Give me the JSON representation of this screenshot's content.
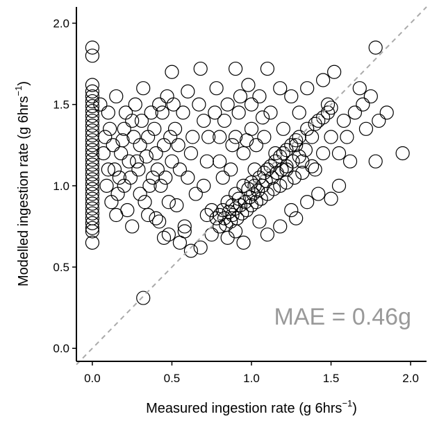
{
  "chart_data": {
    "type": "scatter",
    "title": "",
    "xlabel": {
      "main": "Measured ingestion rate (g 6hrs",
      "sup": "−1",
      "close": ")"
    },
    "ylabel": {
      "main": "Modelled ingestion rate (g 6hrs",
      "sup": "−1",
      "close": ")"
    },
    "xlim": [
      -0.1,
      2.1
    ],
    "ylim": [
      -0.08,
      2.1
    ],
    "x_ticks": [
      0.0,
      0.5,
      1.0,
      1.5,
      2.0
    ],
    "x_tick_labels": [
      "0.0",
      "0.5",
      "1.0",
      "1.5",
      "2.0"
    ],
    "y_ticks": [
      0.0,
      0.5,
      1.0,
      1.5,
      2.0
    ],
    "y_tick_labels": [
      "0.0",
      "0.5",
      "1.0",
      "1.5",
      "2.0"
    ],
    "grid": false,
    "marker": "open-circle",
    "colors": {
      "points": "#000000",
      "reference_line": "#aaaaaa",
      "annotation": "#999999"
    },
    "reference_line": {
      "style": "dashed",
      "from": [
        -0.1,
        -0.1
      ],
      "to": [
        2.1,
        2.1
      ]
    },
    "annotation": "MAE = 0.46g",
    "points": [
      [
        0,
        1.85
      ],
      [
        0,
        1.8
      ],
      [
        0,
        1.62
      ],
      [
        0,
        1.58
      ],
      [
        0,
        1.55
      ],
      [
        0,
        1.52
      ],
      [
        0,
        1.49
      ],
      [
        0,
        1.46
      ],
      [
        0,
        1.43
      ],
      [
        0,
        1.4
      ],
      [
        0,
        1.37
      ],
      [
        0,
        1.34
      ],
      [
        0,
        1.31
      ],
      [
        0,
        1.28
      ],
      [
        0,
        1.25
      ],
      [
        0,
        1.22
      ],
      [
        0,
        1.19
      ],
      [
        0,
        1.16
      ],
      [
        0,
        1.13
      ],
      [
        0,
        1.1
      ],
      [
        0,
        1.07
      ],
      [
        0,
        1.04
      ],
      [
        0,
        1.01
      ],
      [
        0,
        0.98
      ],
      [
        0,
        0.95
      ],
      [
        0,
        0.92
      ],
      [
        0,
        0.89
      ],
      [
        0,
        0.86
      ],
      [
        0,
        0.83
      ],
      [
        0,
        0.8
      ],
      [
        0,
        0.77
      ],
      [
        0,
        0.74
      ],
      [
        0,
        0.72
      ],
      [
        0,
        0.65
      ],
      [
        0.32,
        0.31
      ],
      [
        0.05,
        1.5
      ],
      [
        0.08,
        1.3
      ],
      [
        0.1,
        1.1
      ],
      [
        0.12,
        0.9
      ],
      [
        0.15,
        1.55
      ],
      [
        0.18,
        1.2
      ],
      [
        0.2,
        1.0
      ],
      [
        0.22,
        0.85
      ],
      [
        0.25,
        1.4
      ],
      [
        0.28,
        1.15
      ],
      [
        0.3,
        0.95
      ],
      [
        0.32,
        1.6
      ],
      [
        0.35,
        1.3
      ],
      [
        0.38,
        1.05
      ],
      [
        0.4,
        0.8
      ],
      [
        0.42,
        1.5
      ],
      [
        0.45,
        1.25
      ],
      [
        0.48,
        0.9
      ],
      [
        0.5,
        1.7
      ],
      [
        0.52,
        1.35
      ],
      [
        0.55,
        1.1
      ],
      [
        0.58,
        0.75
      ],
      [
        0.6,
        1.58
      ],
      [
        0.62,
        1.2
      ],
      [
        0.65,
        0.95
      ],
      [
        0.68,
        1.72
      ],
      [
        0.7,
        1.4
      ],
      [
        0.72,
        1.15
      ],
      [
        0.75,
        0.85
      ],
      [
        0.78,
        1.6
      ],
      [
        0.8,
        1.3
      ],
      [
        0.82,
        1.05
      ],
      [
        0.85,
        1.5
      ],
      [
        0.88,
        1.25
      ],
      [
        0.9,
        1.72
      ],
      [
        0.92,
        1.45
      ],
      [
        0.95,
        1.2
      ],
      [
        0.98,
        1.62
      ],
      [
        1.0,
        1.35
      ],
      [
        1.02,
        1.1
      ],
      [
        1.05,
        1.55
      ],
      [
        1.08,
        1.3
      ],
      [
        1.1,
        1.72
      ],
      [
        1.12,
        1.45
      ],
      [
        1.15,
        1.2
      ],
      [
        1.18,
        1.6
      ],
      [
        1.2,
        1.35
      ],
      [
        1.22,
        1.1
      ],
      [
        1.25,
        1.55
      ],
      [
        1.28,
        1.28
      ],
      [
        1.3,
        1.45
      ],
      [
        1.32,
        1.15
      ],
      [
        1.35,
        1.6
      ],
      [
        1.38,
        1.3
      ],
      [
        1.4,
        1.1
      ],
      [
        1.42,
        1.4
      ],
      [
        1.45,
        1.2
      ],
      [
        1.48,
        1.5
      ],
      [
        1.5,
        1.3
      ],
      [
        1.52,
        1.7
      ],
      [
        1.55,
        1.2
      ],
      [
        1.58,
        1.4
      ],
      [
        1.6,
        1.3
      ],
      [
        1.62,
        1.15
      ],
      [
        1.65,
        1.45
      ],
      [
        1.7,
        1.5
      ],
      [
        1.75,
        1.55
      ],
      [
        1.78,
        1.85
      ],
      [
        1.8,
        1.4
      ],
      [
        1.85,
        1.45
      ],
      [
        1.78,
        1.15
      ],
      [
        1.95,
        1.2
      ],
      [
        1.72,
        1.35
      ],
      [
        1.68,
        1.6
      ],
      [
        1.45,
        1.65
      ],
      [
        1.55,
        1.0
      ],
      [
        1.5,
        0.92
      ],
      [
        1.42,
        0.95
      ],
      [
        1.35,
        0.9
      ],
      [
        1.28,
        0.8
      ],
      [
        0.62,
        0.6
      ],
      [
        0.68,
        0.62
      ],
      [
        0.55,
        0.65
      ],
      [
        0.48,
        0.7
      ],
      [
        0.42,
        0.78
      ],
      [
        0.35,
        0.82
      ],
      [
        0.25,
        0.75
      ],
      [
        0.15,
        0.82
      ],
      [
        0.45,
        0.68
      ],
      [
        0.58,
        0.72
      ],
      [
        0.75,
        0.7
      ],
      [
        0.85,
        0.68
      ],
      [
        0.9,
        0.72
      ],
      [
        0.95,
        0.65
      ],
      [
        1.1,
        0.7
      ],
      [
        1.18,
        0.75
      ],
      [
        1.25,
        0.85
      ],
      [
        1.05,
        0.78
      ],
      [
        0.8,
        0.75
      ],
      [
        0.72,
        0.82
      ],
      [
        0.78,
        0.8
      ],
      [
        0.82,
        0.85
      ],
      [
        0.85,
        0.9
      ],
      [
        0.88,
        0.88
      ],
      [
        0.9,
        0.95
      ],
      [
        0.92,
        0.92
      ],
      [
        0.95,
        1.0
      ],
      [
        0.98,
        0.98
      ],
      [
        1.0,
        1.02
      ],
      [
        1.02,
        1.0
      ],
      [
        1.05,
        1.05
      ],
      [
        1.08,
        1.08
      ],
      [
        1.1,
        1.1
      ],
      [
        1.12,
        1.12
      ],
      [
        1.15,
        1.15
      ],
      [
        1.18,
        1.18
      ],
      [
        1.2,
        1.2
      ],
      [
        1.22,
        1.22
      ],
      [
        1.25,
        1.25
      ],
      [
        1.28,
        1.25
      ],
      [
        1.3,
        1.3
      ],
      [
        1.35,
        1.35
      ],
      [
        1.4,
        1.38
      ],
      [
        1.45,
        1.42
      ],
      [
        1.48,
        1.45
      ],
      [
        1.5,
        1.48
      ],
      [
        0.8,
        0.82
      ],
      [
        0.83,
        0.8
      ],
      [
        0.86,
        0.84
      ],
      [
        0.88,
        0.82
      ],
      [
        0.9,
        0.86
      ],
      [
        0.93,
        0.88
      ],
      [
        0.96,
        0.9
      ],
      [
        0.99,
        0.93
      ],
      [
        1.01,
        0.95
      ],
      [
        1.04,
        0.97
      ],
      [
        1.07,
        1.0
      ],
      [
        1.09,
        1.03
      ],
      [
        1.13,
        1.05
      ],
      [
        1.16,
        1.08
      ],
      [
        1.19,
        1.1
      ],
      [
        1.22,
        1.12
      ],
      [
        1.26,
        1.15
      ],
      [
        1.3,
        1.18
      ],
      [
        1.34,
        1.22
      ],
      [
        0.84,
        0.76
      ],
      [
        0.87,
        0.78
      ],
      [
        0.91,
        0.8
      ],
      [
        0.94,
        0.83
      ],
      [
        0.97,
        0.85
      ],
      [
        1.0,
        0.88
      ],
      [
        1.03,
        0.9
      ],
      [
        1.06,
        0.92
      ],
      [
        1.1,
        0.95
      ],
      [
        1.14,
        0.98
      ],
      [
        1.18,
        1.0
      ],
      [
        1.22,
        1.02
      ],
      [
        1.27,
        1.05
      ],
      [
        1.32,
        1.08
      ],
      [
        1.38,
        1.12
      ],
      [
        0.1,
        1.45
      ],
      [
        0.13,
        1.25
      ],
      [
        0.17,
        1.05
      ],
      [
        0.2,
        1.35
      ],
      [
        0.23,
        1.15
      ],
      [
        0.27,
        1.5
      ],
      [
        0.3,
        1.25
      ],
      [
        0.33,
        0.9
      ],
      [
        0.37,
        1.45
      ],
      [
        0.4,
        1.2
      ],
      [
        0.43,
        1.0
      ],
      [
        0.47,
        1.55
      ],
      [
        0.5,
        1.15
      ],
      [
        0.53,
        0.88
      ],
      [
        0.57,
        1.45
      ],
      [
        0.6,
        1.05
      ],
      [
        0.63,
        1.3
      ],
      [
        0.67,
        1.5
      ],
      [
        0.7,
        1.0
      ],
      [
        0.73,
        1.3
      ],
      [
        0.77,
        1.45
      ],
      [
        0.8,
        1.15
      ],
      [
        0.83,
        1.4
      ],
      [
        0.87,
        1.1
      ],
      [
        0.9,
        1.3
      ],
      [
        0.93,
        1.55
      ],
      [
        0.97,
        1.28
      ],
      [
        1.0,
        1.5
      ],
      [
        1.03,
        1.25
      ],
      [
        1.07,
        1.42
      ],
      [
        0.07,
        1.2
      ],
      [
        0.09,
        1.0
      ],
      [
        0.11,
        1.35
      ],
      [
        0.14,
        1.1
      ],
      [
        0.16,
        0.95
      ],
      [
        0.19,
        1.28
      ],
      [
        0.21,
        1.45
      ],
      [
        0.24,
        1.05
      ],
      [
        0.26,
        1.3
      ],
      [
        0.29,
        1.1
      ],
      [
        0.31,
        1.4
      ],
      [
        0.34,
        1.18
      ],
      [
        0.36,
        1.0
      ],
      [
        0.39,
        1.35
      ],
      [
        0.41,
        1.1
      ],
      [
        0.44,
        1.45
      ],
      [
        0.46,
        1.05
      ],
      [
        0.49,
        1.3
      ],
      [
        0.51,
        1.5
      ],
      [
        0.54,
        1.25
      ]
    ]
  }
}
